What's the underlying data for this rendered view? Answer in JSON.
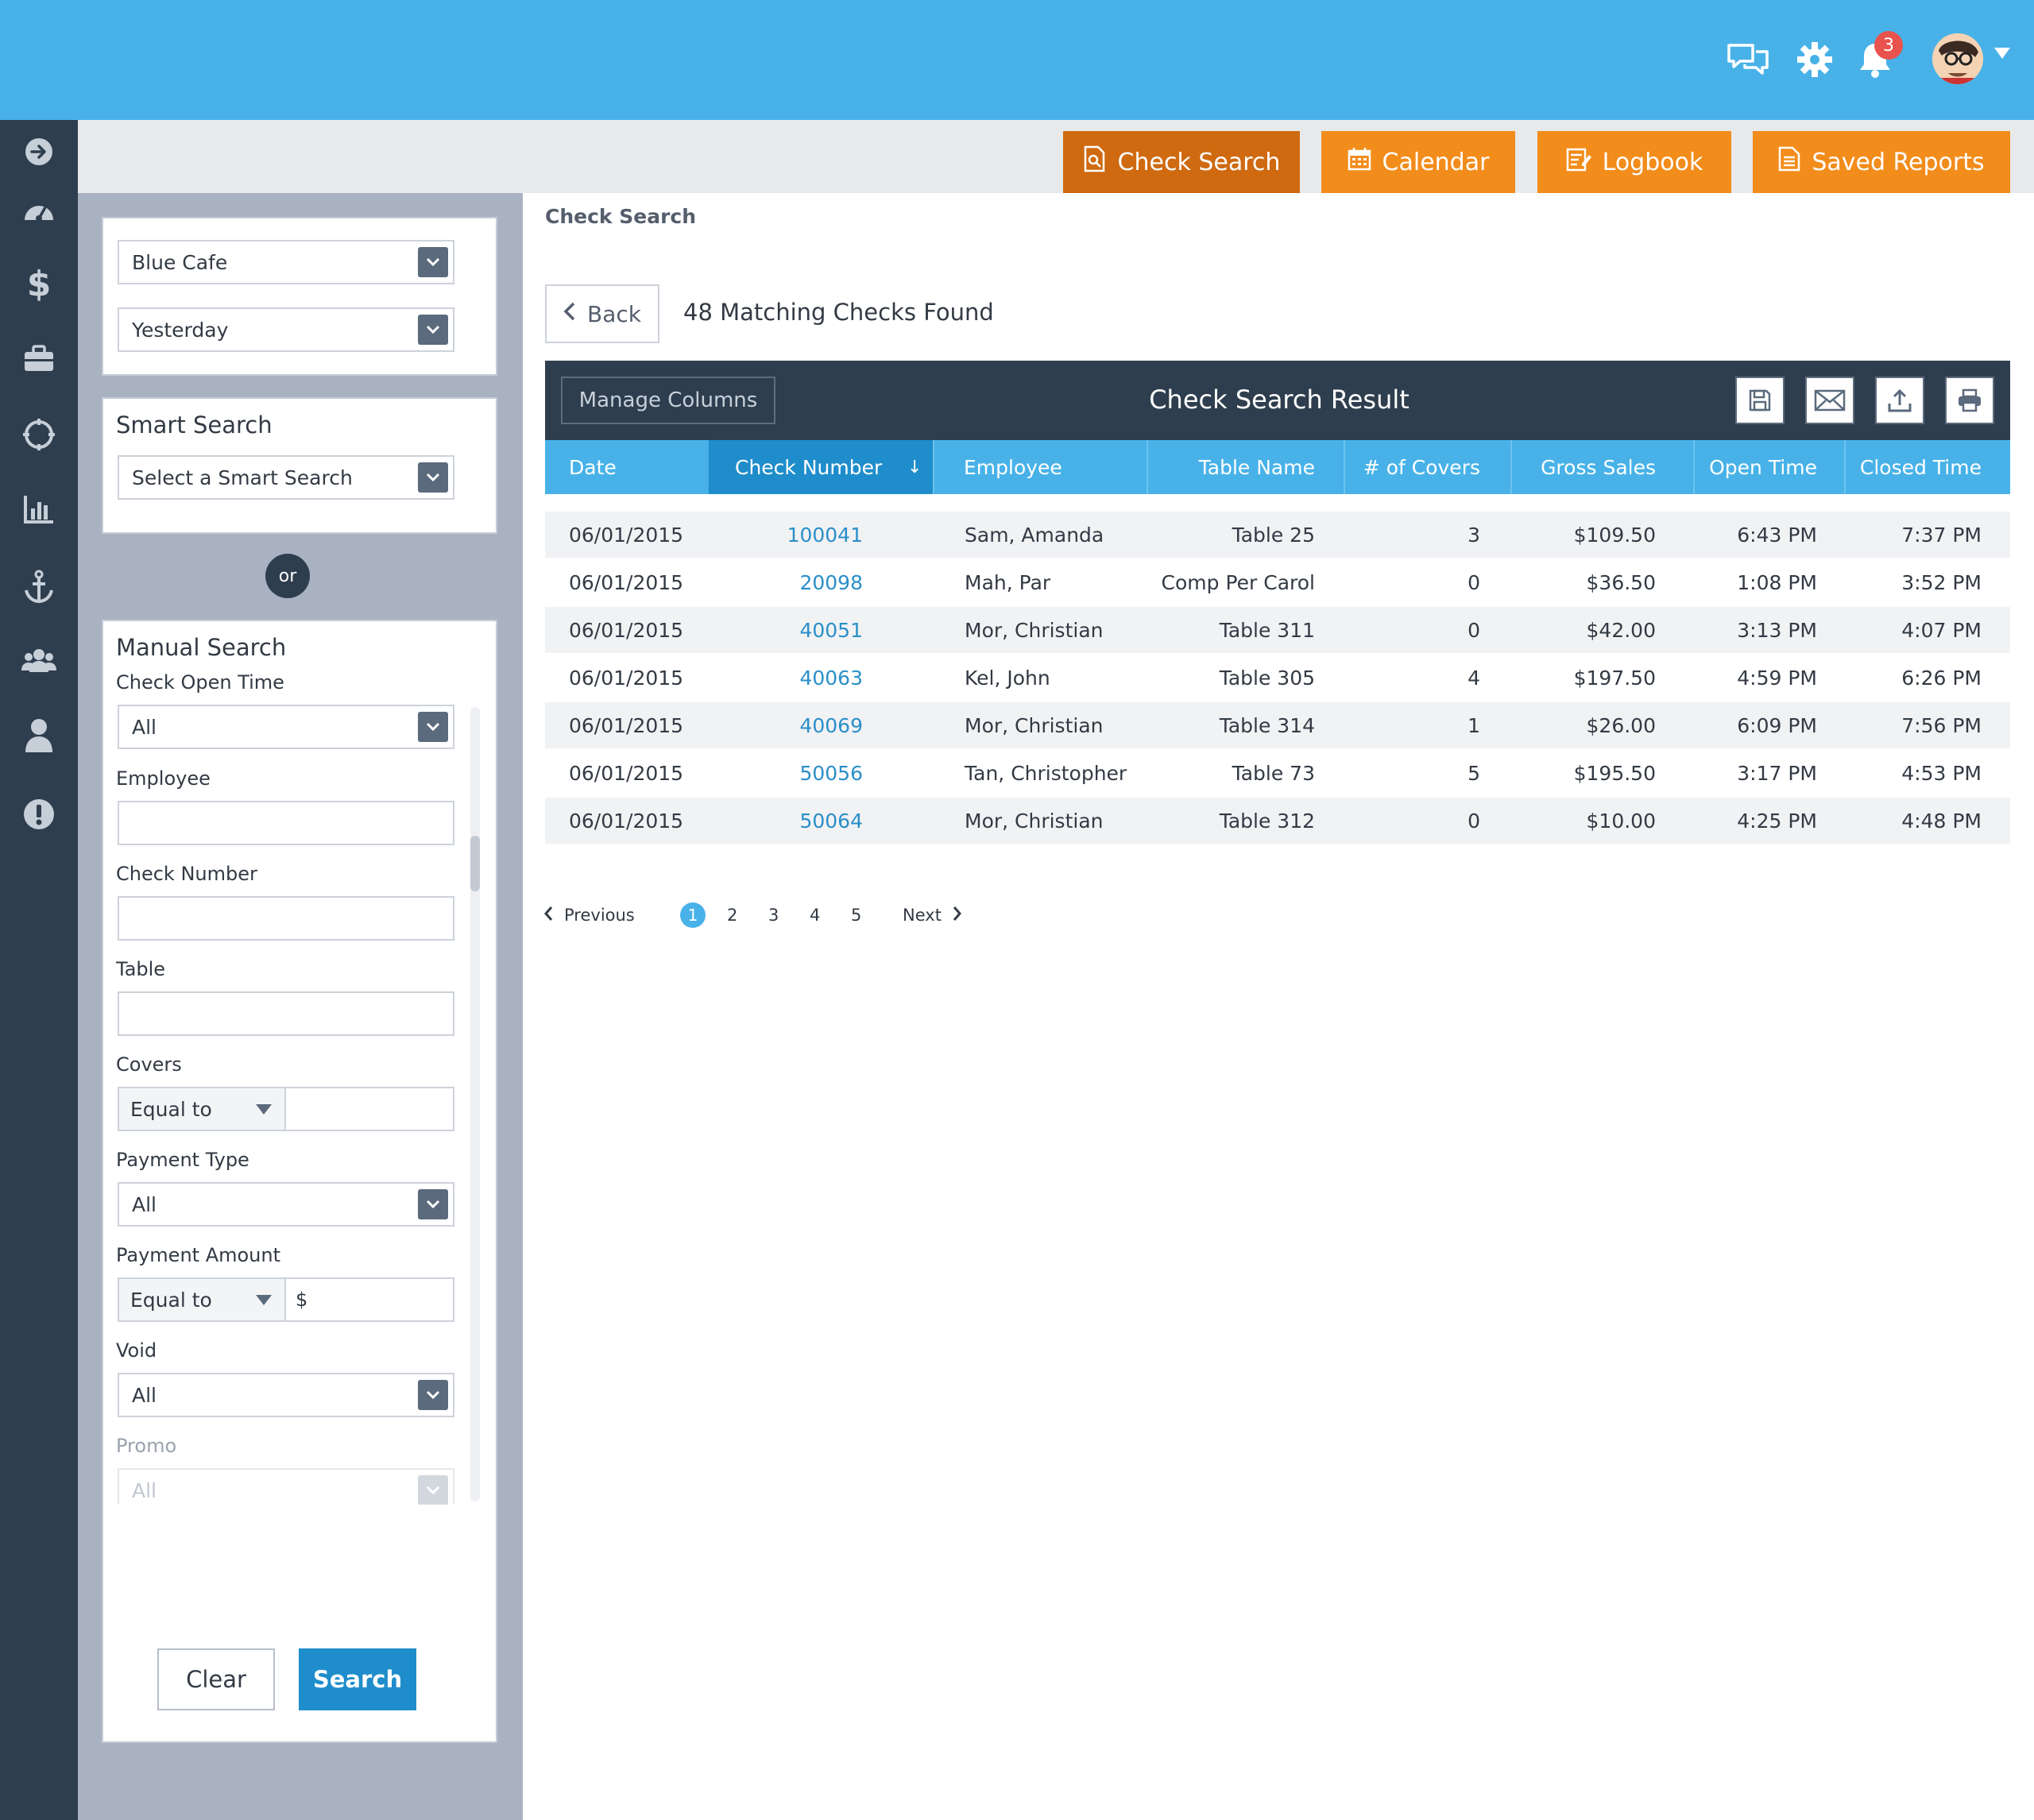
{
  "header": {
    "notification_count": "3",
    "icons": [
      "chat-icon",
      "gear-icon",
      "bell-icon",
      "avatar"
    ]
  },
  "nav": {
    "icons": [
      "arrow-right-icon",
      "dashboard-icon",
      "dollar-icon",
      "briefcase-icon",
      "target-icon",
      "bar-chart-icon",
      "anchor-icon",
      "group-icon",
      "user-icon",
      "alert-icon"
    ]
  },
  "tabs": [
    {
      "label": "Check Search",
      "icon": "check-search-icon",
      "active": true
    },
    {
      "label": "Calendar",
      "icon": "calendar-icon",
      "active": false
    },
    {
      "label": "Logbook",
      "icon": "logbook-icon",
      "active": false
    },
    {
      "label": "Saved Reports",
      "icon": "report-icon",
      "active": false
    }
  ],
  "filters": {
    "location": "Blue Cafe",
    "date_range": "Yesterday",
    "smart_search_title": "Smart Search",
    "smart_search_value": "Select a Smart Search",
    "or_label": "or",
    "manual_title": "Manual Search",
    "check_open_time_label": "Check Open Time",
    "check_open_time_value": "All",
    "employee_label": "Employee",
    "employee_value": "",
    "check_number_label": "Check Number",
    "check_number_value": "",
    "table_label": "Table",
    "table_value": "",
    "covers_label": "Covers",
    "covers_op": "Equal to",
    "covers_value": "",
    "payment_type_label": "Payment Type",
    "payment_type_value": "All",
    "payment_amount_label": "Payment Amount",
    "payment_amount_op": "Equal to",
    "payment_amount_prefix": "$",
    "void_label": "Void",
    "void_value": "All",
    "promo_label": "Promo",
    "promo_value": "All",
    "clear_label": "Clear",
    "search_label": "Search"
  },
  "main": {
    "breadcrumb": "Check Search",
    "back_label": "Back",
    "result_count": "48 Matching Checks Found",
    "manage_columns_label": "Manage Columns",
    "result_title": "Check Search Result",
    "tool_icons": [
      "save-icon",
      "email-icon",
      "export-icon",
      "print-icon"
    ],
    "columns": [
      "Date",
      "Check Number",
      "Employee",
      "Table Name",
      "# of Covers",
      "Gross Sales",
      "Open Time",
      "Closed Time"
    ],
    "sort_indicator": "↓",
    "rows": [
      {
        "date": "06/01/2015",
        "check": "100041",
        "employee": "Sam, Amanda",
        "table": "Table 25",
        "covers": "3",
        "gross": "$109.50",
        "open": "6:43 PM",
        "closed": "7:37 PM"
      },
      {
        "date": "06/01/2015",
        "check": "20098",
        "employee": "Mah, Par",
        "table": "Comp Per Carol",
        "covers": "0",
        "gross": "$36.50",
        "open": "1:08 PM",
        "closed": "3:52 PM"
      },
      {
        "date": "06/01/2015",
        "check": "40051",
        "employee": "Mor, Christian",
        "table": "Table 311",
        "covers": "0",
        "gross": "$42.00",
        "open": "3:13 PM",
        "closed": "4:07 PM"
      },
      {
        "date": "06/01/2015",
        "check": "40063",
        "employee": "Kel, John",
        "table": "Table 305",
        "covers": "4",
        "gross": "$197.50",
        "open": "4:59 PM",
        "closed": "6:26 PM"
      },
      {
        "date": "06/01/2015",
        "check": "40069",
        "employee": "Mor, Christian",
        "table": "Table 314",
        "covers": "1",
        "gross": "$26.00",
        "open": "6:09 PM",
        "closed": "7:56 PM"
      },
      {
        "date": "06/01/2015",
        "check": "50056",
        "employee": "Tan, Christopher",
        "table": "Table 73",
        "covers": "5",
        "gross": "$195.50",
        "open": "3:17 PM",
        "closed": "4:53 PM"
      },
      {
        "date": "06/01/2015",
        "check": "50064",
        "employee": "Mor, Christian",
        "table": "Table 312",
        "covers": "0",
        "gross": "$10.00",
        "open": "4:25 PM",
        "closed": "4:48 PM"
      }
    ]
  },
  "pagination": {
    "previous": "Previous",
    "pages": [
      "1",
      "2",
      "3",
      "4",
      "5"
    ],
    "current": "1",
    "next": "Next"
  },
  "colors": {
    "topbar": "#48b2e8",
    "nav": "#2f3e4e",
    "tab_active": "#cf6a11",
    "tab": "#f28c1b",
    "link": "#2a8fc9",
    "search_button": "#1f8dcb"
  }
}
